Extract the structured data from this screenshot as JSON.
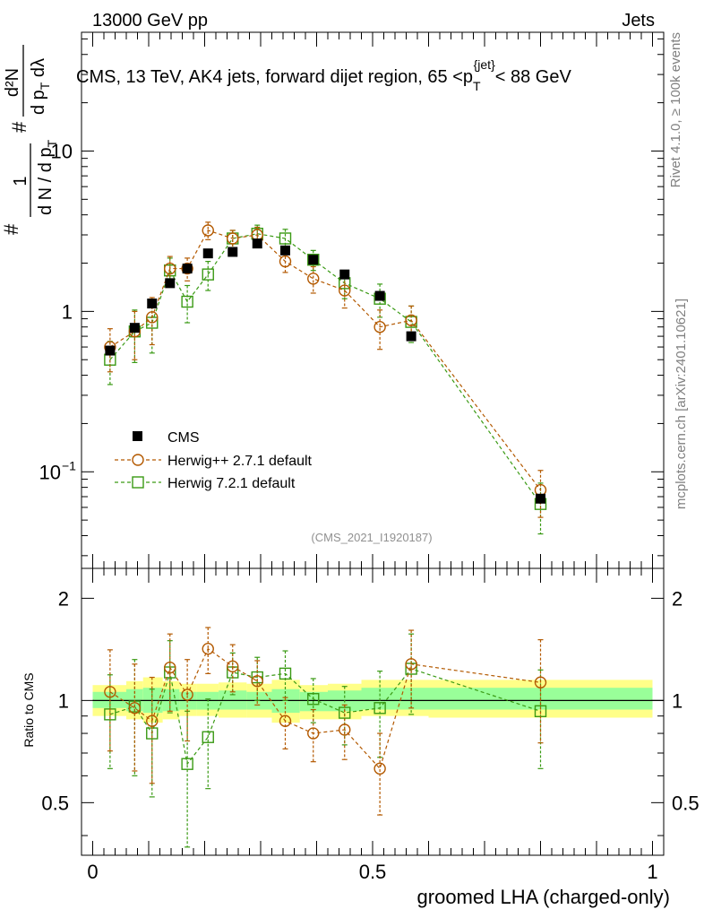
{
  "header": {
    "left": "13000 GeV pp",
    "right": "Jets"
  },
  "side_labels": {
    "rivet": "Rivet 4.1.0, ≥ 100k events",
    "mcplots": "mcplots.cern.ch [arXiv:2401.10621]"
  },
  "colors": {
    "data": "#000000",
    "herwigpp": "#b35900",
    "herwig7": "#3a9a14",
    "band_outer": "#ffff88",
    "band_inner": "#99ff99"
  },
  "chart_data": [
    {
      "type": "scatter",
      "panel": "main",
      "title": "CMS, 13 TeV, AK4 jets, forward dijet region, 65 <p",
      "title_sub": "T",
      "title_sup": "{jet}",
      "title_tail": "< 88 GeV",
      "analysis_id": "(CMS_2021_I1920187)",
      "xlim": [
        -0.02,
        1.02
      ],
      "ylim": [
        0.025,
        55
      ],
      "yscale": "log",
      "y_ticks": [
        {
          "value": 0.1,
          "base": "10",
          "exp": "−1"
        },
        {
          "value": 1,
          "label": "1"
        },
        {
          "value": 10,
          "label": "10"
        }
      ],
      "ylabel": {
        "frac1_num": "1",
        "frac1_den": "d N / d p",
        "frac1_den_sub": "T",
        "frac2_num": "d²N",
        "frac2_den": "d p",
        "frac2_den_sub": "T",
        "frac2_den_tail": " dλ",
        "hash": "#"
      },
      "x": [
        0.031,
        0.075,
        0.106,
        0.138,
        0.169,
        0.206,
        0.25,
        0.294,
        0.344,
        0.394,
        0.45,
        0.513,
        0.569,
        0.8
      ],
      "series": [
        {
          "name": "CMS",
          "marker": "filled-square",
          "values": [
            0.57,
            0.79,
            1.12,
            1.5,
            1.85,
            2.3,
            2.35,
            2.65,
            2.4,
            2.1,
            1.7,
            1.25,
            0.7,
            0.068
          ]
        },
        {
          "name": "Herwig++ 2.7.1 default",
          "marker": "open-circle",
          "values": [
            0.6,
            0.75,
            0.92,
            1.85,
            1.85,
            3.2,
            2.85,
            3.0,
            2.05,
            1.6,
            1.35,
            0.8,
            0.88,
            0.077
          ],
          "errors": [
            0.18,
            0.25,
            0.3,
            0.35,
            0.3,
            0.4,
            0.35,
            0.35,
            0.3,
            0.3,
            0.3,
            0.22,
            0.2,
            0.025
          ]
        },
        {
          "name": "Herwig 7.2.1 default",
          "marker": "open-square",
          "values": [
            0.5,
            0.75,
            0.85,
            1.8,
            1.15,
            1.7,
            2.85,
            3.05,
            2.85,
            2.1,
            1.5,
            1.2,
            0.86,
            0.063
          ],
          "errors": [
            0.15,
            0.27,
            0.3,
            0.35,
            0.3,
            0.35,
            0.35,
            0.4,
            0.4,
            0.3,
            0.3,
            0.28,
            0.22,
            0.022
          ]
        }
      ],
      "legend": {
        "placement": "bottom-left",
        "entries": [
          "CMS",
          "Herwig++ 2.7.1 default",
          "Herwig 7.2.1 default"
        ]
      }
    },
    {
      "type": "scatter",
      "panel": "ratio",
      "ylabel": "Ratio to CMS",
      "xlabel": "groomed LHA (charged-only)",
      "xlim": [
        -0.02,
        1.02
      ],
      "ylim": [
        0.35,
        2.45
      ],
      "yscale": "log",
      "y_tick_labels": [
        {
          "value": 0.5,
          "label": "0.5"
        },
        {
          "value": 1,
          "label": "1"
        },
        {
          "value": 2,
          "label": "2"
        }
      ],
      "x_tick_labels": [
        {
          "value": 0,
          "label": "0"
        },
        {
          "value": 0.5,
          "label": "0.5"
        },
        {
          "value": 1,
          "label": "1"
        }
      ],
      "reference_line": 1,
      "uncertainty_band": {
        "edges": [
          0,
          0.06,
          0.09,
          0.125,
          0.155,
          0.185,
          0.225,
          0.275,
          0.32,
          0.37,
          0.42,
          0.48,
          0.6,
          1.0
        ],
        "outer": [
          [
            0.9,
            1.11
          ],
          [
            0.88,
            1.14
          ],
          [
            0.86,
            1.17
          ],
          [
            0.88,
            1.14
          ],
          [
            0.9,
            1.12
          ],
          [
            0.9,
            1.12
          ],
          [
            0.89,
            1.13
          ],
          [
            0.89,
            1.12
          ],
          [
            0.86,
            1.15
          ],
          [
            0.88,
            1.11
          ],
          [
            0.88,
            1.12
          ],
          [
            0.9,
            1.15
          ],
          [
            0.89,
            1.15
          ]
        ],
        "inner": [
          [
            0.95,
            1.06
          ],
          [
            0.93,
            1.08
          ],
          [
            0.92,
            1.09
          ],
          [
            0.93,
            1.08
          ],
          [
            0.94,
            1.06
          ],
          [
            0.94,
            1.06
          ],
          [
            0.94,
            1.07
          ],
          [
            0.94,
            1.06
          ],
          [
            0.92,
            1.08
          ],
          [
            0.93,
            1.06
          ],
          [
            0.93,
            1.07
          ],
          [
            0.94,
            1.09
          ],
          [
            0.94,
            1.09
          ]
        ]
      },
      "x": [
        0.031,
        0.075,
        0.106,
        0.138,
        0.169,
        0.206,
        0.25,
        0.294,
        0.344,
        0.394,
        0.45,
        0.513,
        0.569,
        0.8
      ],
      "series": [
        {
          "name": "Herwig++ 2.7.1 default",
          "values": [
            1.06,
            0.95,
            0.87,
            1.25,
            1.04,
            1.42,
            1.26,
            1.14,
            0.87,
            0.8,
            0.82,
            0.63,
            1.28,
            1.13
          ],
          "errors": [
            0.35,
            0.33,
            0.3,
            0.32,
            0.28,
            0.22,
            0.2,
            0.17,
            0.15,
            0.14,
            0.15,
            0.17,
            0.33,
            0.38
          ]
        },
        {
          "name": "Herwig 7.2.1 default",
          "values": [
            0.91,
            0.96,
            0.8,
            1.21,
            0.65,
            0.78,
            1.21,
            1.17,
            1.2,
            1.01,
            0.92,
            0.95,
            1.24,
            0.93
          ],
          "errors": [
            0.28,
            0.36,
            0.28,
            0.29,
            0.28,
            0.23,
            0.17,
            0.17,
            0.2,
            0.15,
            0.18,
            0.27,
            0.33,
            0.3
          ]
        }
      ]
    }
  ]
}
